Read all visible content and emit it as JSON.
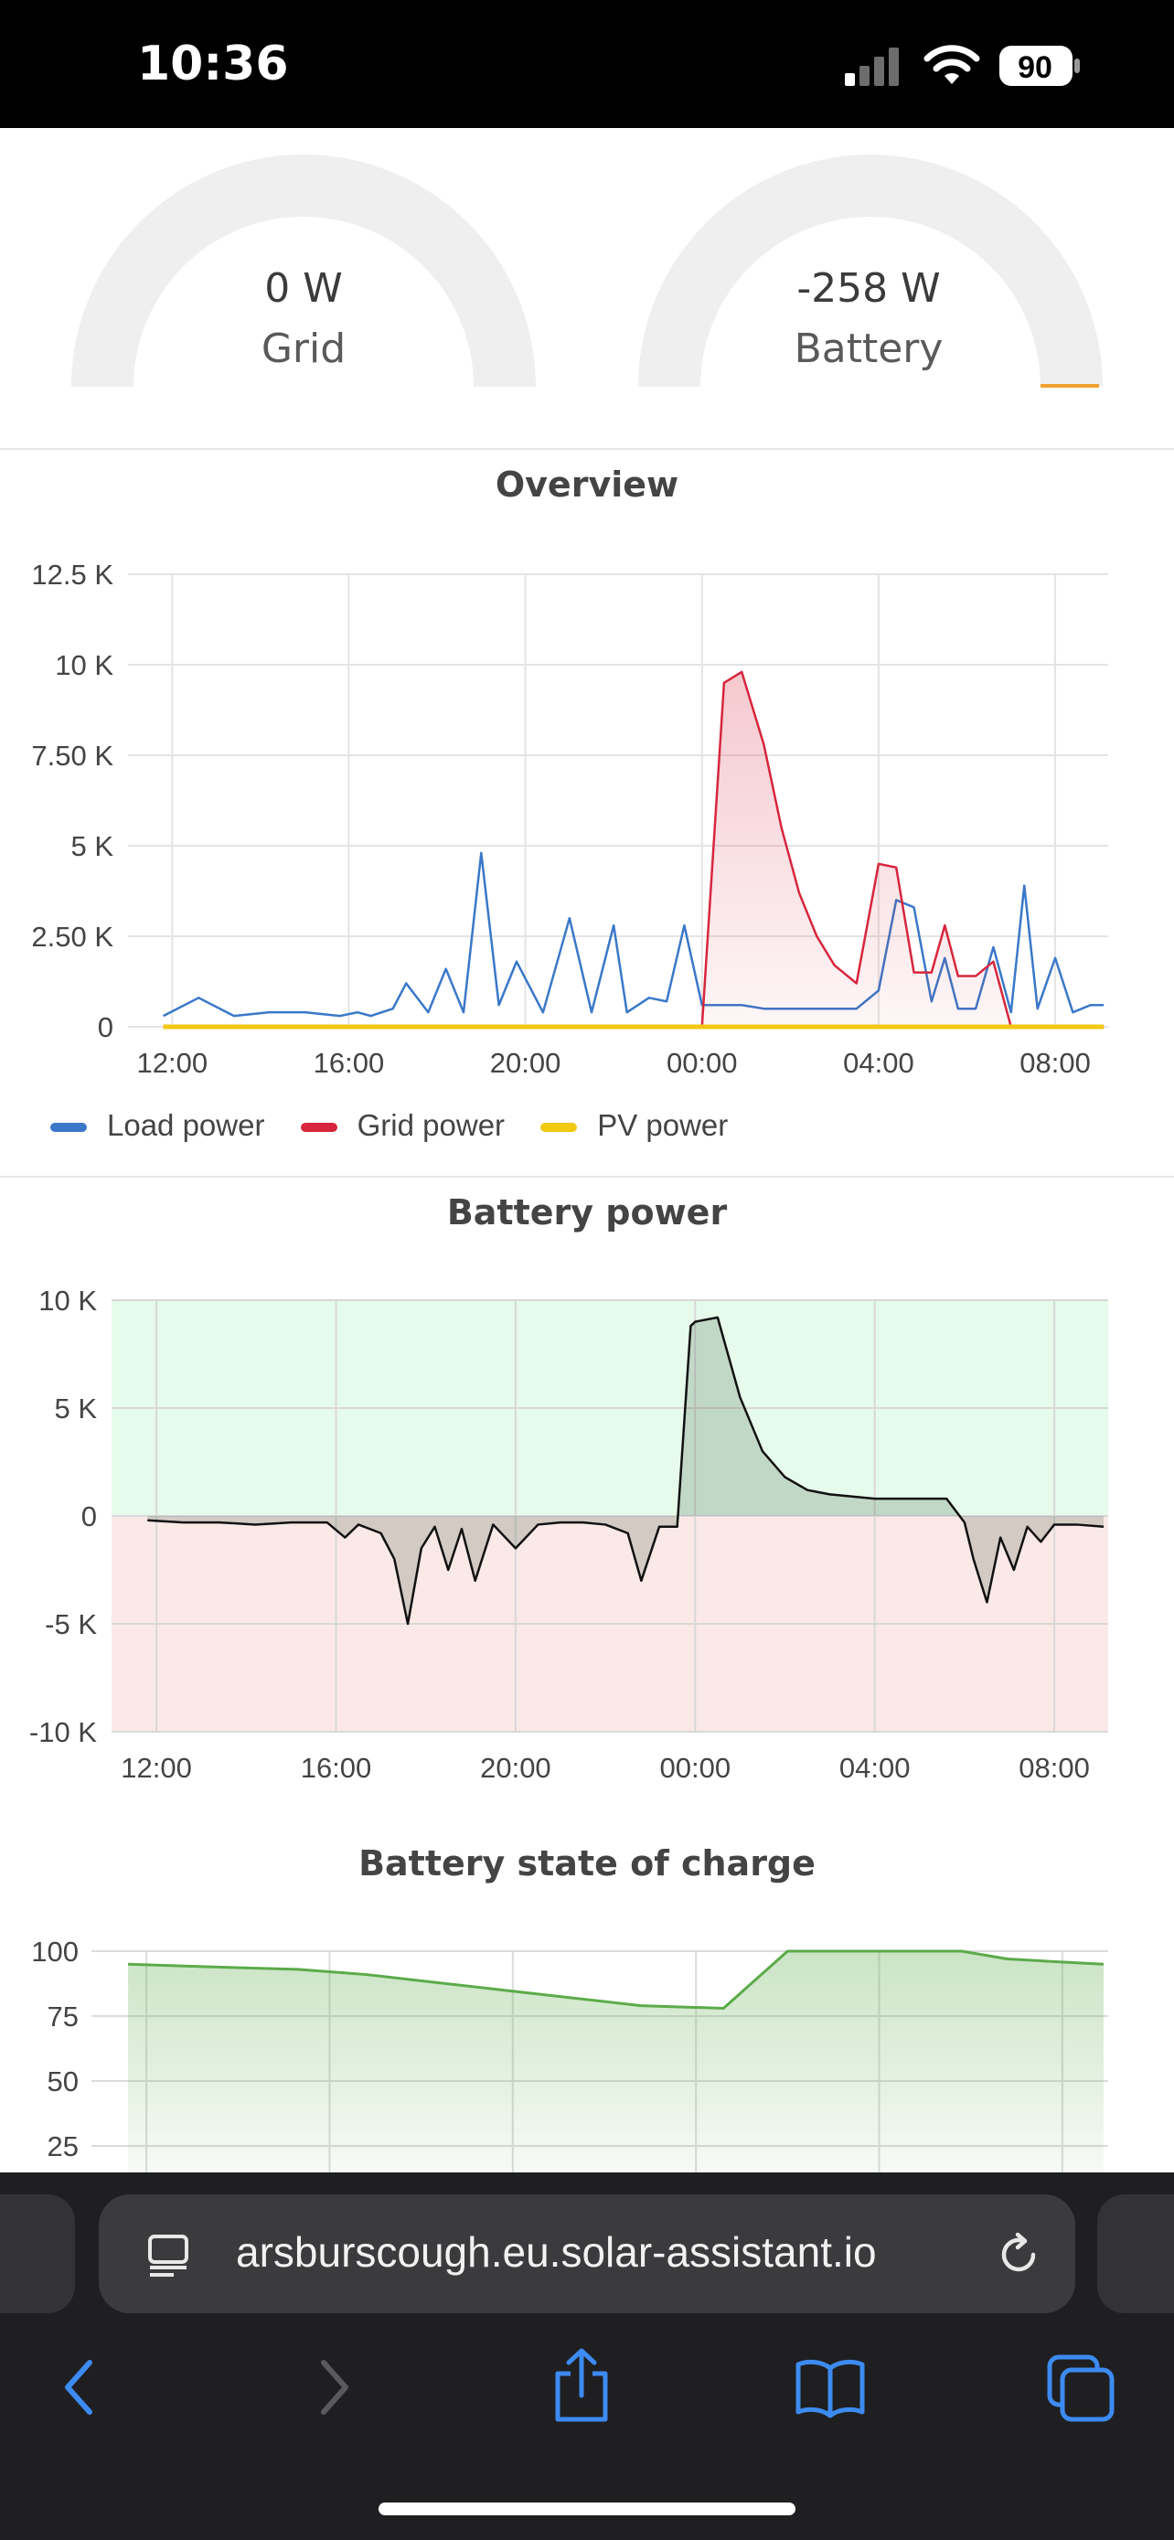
{
  "status_bar": {
    "time": "10:36",
    "battery_level": "90",
    "icons": [
      "signal-icon",
      "wifi-icon",
      "battery-icon"
    ]
  },
  "gauges": [
    {
      "value": "0 W",
      "label": "Grid",
      "fill_fraction": 0.0
    },
    {
      "value": "-258 W",
      "label": "Battery",
      "fill_fraction": 0.02,
      "accent_color": "#f0a030"
    }
  ],
  "overview": {
    "title": "Overview",
    "legend": [
      {
        "name": "Load power",
        "color": "#3a78c9"
      },
      {
        "name": "Grid power",
        "color": "#d7263d"
      },
      {
        "name": "PV power",
        "color": "#f2c811"
      }
    ]
  },
  "battery_power": {
    "title": "Battery power"
  },
  "battery_soc": {
    "title": "Battery state of charge"
  },
  "browser": {
    "url": "arsburscough.eu.solar-assistant.io",
    "icons": [
      "page-menu-icon",
      "reload-icon",
      "back-icon",
      "forward-icon",
      "share-icon",
      "bookmarks-icon",
      "tabs-icon"
    ]
  },
  "chart_data": [
    {
      "type": "area",
      "title": "Overview",
      "x_tick_labels": [
        "12:00",
        "16:00",
        "20:00",
        "00:00",
        "04:00",
        "08:00"
      ],
      "y_tick_labels": [
        "0",
        "2.50 K",
        "5 K",
        "7.50 K",
        "10 K",
        "12.5 K"
      ],
      "ylim": [
        0,
        12500
      ],
      "grid": true,
      "legend_position": "bottom-left",
      "x_hours": [
        0.8,
        1.6,
        2.4,
        3.2,
        4.0,
        4.8,
        5.2,
        5.5,
        6.0,
        6.3,
        6.8,
        7.2,
        7.6,
        8.0,
        8.4,
        8.8,
        9.4,
        10.0,
        10.5,
        11.0,
        11.3,
        11.8,
        12.2,
        12.6,
        13.0,
        13.5,
        13.9,
        14.4,
        14.8,
        15.2,
        15.6,
        16.0,
        16.5,
        17.0,
        17.4,
        17.8,
        18.2,
        18.5,
        18.8,
        19.2,
        19.6,
        20.0,
        20.3,
        20.6,
        21.0,
        21.4,
        21.8,
        22.1
      ],
      "series": [
        {
          "name": "Load power",
          "values": [
            0.3,
            0.8,
            0.3,
            0.4,
            0.4,
            0.3,
            0.4,
            0.3,
            0.5,
            1.2,
            0.4,
            1.6,
            0.4,
            4.8,
            0.6,
            1.8,
            0.4,
            3.0,
            0.4,
            2.8,
            0.4,
            0.8,
            0.7,
            2.8,
            0.6,
            0.6,
            0.6,
            0.5,
            0.5,
            0.5,
            0.5,
            0.5,
            0.5,
            1.0,
            3.5,
            3.3,
            0.7,
            1.9,
            0.5,
            0.5,
            2.2,
            0.4,
            3.9,
            0.5,
            1.9,
            0.4,
            0.6,
            0.6
          ]
        },
        {
          "name": "Grid power",
          "values": [
            0,
            0,
            0,
            0,
            0,
            0,
            0,
            0,
            0,
            0,
            0,
            0,
            0,
            0,
            0,
            0,
            0,
            0,
            0,
            0,
            0,
            0,
            0,
            0,
            0,
            9.5,
            9.8,
            7.8,
            5.5,
            3.7,
            2.5,
            1.7,
            1.2,
            4.5,
            4.4,
            1.5,
            1.5,
            2.8,
            1.4,
            1.4,
            1.8,
            0,
            0,
            0,
            0,
            0,
            0,
            0
          ]
        },
        {
          "name": "PV power",
          "values": [
            0,
            0,
            0,
            0,
            0,
            0,
            0,
            0,
            0,
            0,
            0,
            0,
            0,
            0,
            0,
            0,
            0,
            0,
            0,
            0,
            0,
            0,
            0,
            0,
            0,
            0,
            0,
            0,
            0,
            0,
            0,
            0,
            0,
            0,
            0,
            0,
            0,
            0,
            0,
            0,
            0,
            0,
            0,
            0,
            0,
            0,
            0,
            0
          ]
        }
      ],
      "value_units": "K"
    },
    {
      "type": "area",
      "title": "Battery power",
      "x_tick_labels": [
        "12:00",
        "16:00",
        "20:00",
        "00:00",
        "04:00",
        "08:00"
      ],
      "y_tick_labels": [
        "10 K",
        "5 K",
        "0",
        "-5 K",
        "-10 K"
      ],
      "ylim": [
        -10000,
        10000
      ],
      "grid": true,
      "x_hours": [
        0.8,
        1.6,
        2.4,
        3.2,
        4.0,
        4.8,
        5.2,
        5.5,
        6.0,
        6.3,
        6.6,
        6.9,
        7.2,
        7.5,
        7.8,
        8.1,
        8.5,
        9.0,
        9.5,
        10.0,
        10.5,
        11.0,
        11.5,
        11.8,
        12.2,
        12.6,
        12.9,
        13.0,
        13.5,
        14.0,
        14.5,
        15.0,
        15.5,
        16.0,
        16.5,
        17.0,
        17.5,
        18.0,
        18.6,
        19.0,
        19.2,
        19.5,
        19.8,
        20.1,
        20.4,
        20.7,
        21.0,
        21.5,
        22.1
      ],
      "series": [
        {
          "name": "",
          "values": [
            -0.2,
            -0.3,
            -0.3,
            -0.4,
            -0.3,
            -0.3,
            -1.0,
            -0.4,
            -0.8,
            -2.0,
            -5.0,
            -1.5,
            -0.5,
            -2.5,
            -0.6,
            -3.0,
            -0.4,
            -1.5,
            -0.4,
            -0.3,
            -0.3,
            -0.4,
            -0.8,
            -3.0,
            -0.5,
            -0.5,
            8.8,
            9.0,
            9.2,
            5.5,
            3.0,
            1.8,
            1.2,
            1.0,
            0.9,
            0.8,
            0.8,
            0.8,
            0.8,
            -0.3,
            -2.0,
            -4.0,
            -1.0,
            -2.5,
            -0.5,
            -1.2,
            -0.4,
            -0.4,
            -0.5
          ]
        }
      ],
      "value_units": "K"
    },
    {
      "type": "area",
      "title": "Battery state of charge",
      "y_tick_labels": [
        "100",
        "75",
        "50",
        "25"
      ],
      "ylim": [
        0,
        100
      ],
      "grid": true,
      "x_hours": [
        0.8,
        2.5,
        4.5,
        6.0,
        7.5,
        9.0,
        10.5,
        12.0,
        13.8,
        15.2,
        16.5,
        17.5,
        19.0,
        20.0,
        21.0,
        22.1
      ],
      "series": [
        {
          "name": "",
          "values": [
            95,
            94,
            93,
            91,
            88,
            85,
            82,
            79,
            78,
            100,
            100,
            100,
            100,
            97,
            96,
            95
          ]
        }
      ]
    }
  ]
}
